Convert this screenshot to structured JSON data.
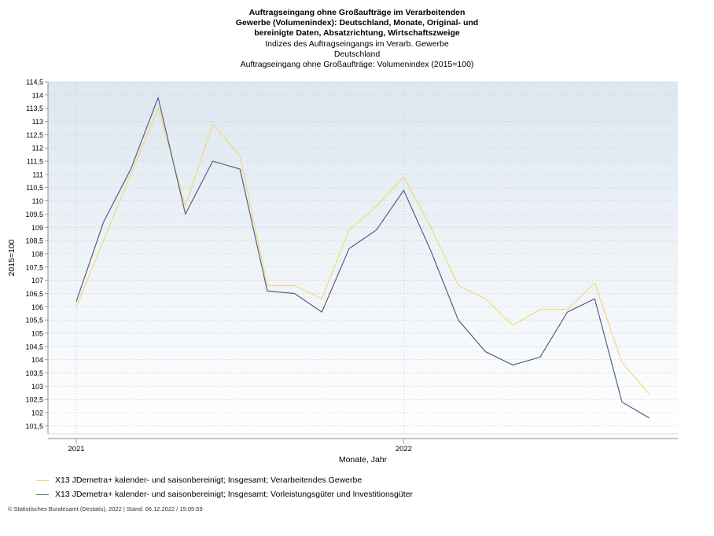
{
  "chart_data": {
    "type": "line",
    "title": [
      "Auftragseingang ohne Großaufträge im Verarbeitenden",
      "Gewerbe (Volumenindex): Deutschland, Monate, Original- und",
      "bereinigte Daten, Absatzrichtung, Wirtschaftszweige"
    ],
    "subtitle": [
      "Indizes des Auftragseingangs im Verarb. Gewerbe",
      "Deutschland",
      "Auftragseingang ohne Großaufträge: Volumenindex (2015=100)"
    ],
    "xlabel": "Monate, Jahr",
    "ylabel": "2015=100",
    "ylim": [
      101.2,
      114.5
    ],
    "yticks": [
      "101,5",
      "102",
      "102,5",
      "103",
      "103,5",
      "104",
      "104,5",
      "105",
      "105,5",
      "106",
      "106,5",
      "107",
      "107,5",
      "108",
      "108,5",
      "109",
      "109,5",
      "110",
      "110,5",
      "111",
      "111,5",
      "112",
      "112,5",
      "113",
      "113,5",
      "114",
      "114,5"
    ],
    "x": [
      "2021-01",
      "2021-02",
      "2021-03",
      "2021-04",
      "2021-05",
      "2021-06",
      "2021-07",
      "2021-08",
      "2021-09",
      "2021-10",
      "2021-11",
      "2021-12",
      "2022-01",
      "2022-02",
      "2022-03",
      "2022-04",
      "2022-05",
      "2022-06",
      "2022-07",
      "2022-08",
      "2022-09",
      "2022-10"
    ],
    "xtick_labels": [
      {
        "label": "2021",
        "x": "2021-01"
      },
      {
        "label": "2022",
        "x": "2022-01"
      }
    ],
    "grid": true,
    "legend": "bottom-left",
    "series": [
      {
        "name": "X13 JDemetra+  kalender- und saisonbereinigt; Insgesamt; Verarbeitendes Gewerbe",
        "color": "#f5d77a",
        "values": [
          106.0,
          108.5,
          111.0,
          113.5,
          109.8,
          112.9,
          111.7,
          106.8,
          106.8,
          106.3,
          108.9,
          109.8,
          110.9,
          109.0,
          106.8,
          106.3,
          105.3,
          105.9,
          105.9,
          106.9,
          103.9,
          102.7
        ]
      },
      {
        "name": "X13 JDemetra+  kalender- und saisonbereinigt; Insgesamt; Vorleistungsgüter und Investitionsgüter",
        "color": "#5b5d82",
        "values": [
          106.2,
          109.2,
          111.2,
          113.9,
          109.5,
          111.5,
          111.2,
          106.6,
          106.5,
          105.8,
          108.2,
          108.9,
          110.4,
          108.1,
          105.5,
          104.3,
          103.8,
          104.1,
          105.8,
          106.3,
          102.4,
          101.8
        ]
      }
    ]
  },
  "footer": "© Statistisches Bundesamt (Destatis), 2022 | Stand: 06.12.2022 / 15:05:59"
}
